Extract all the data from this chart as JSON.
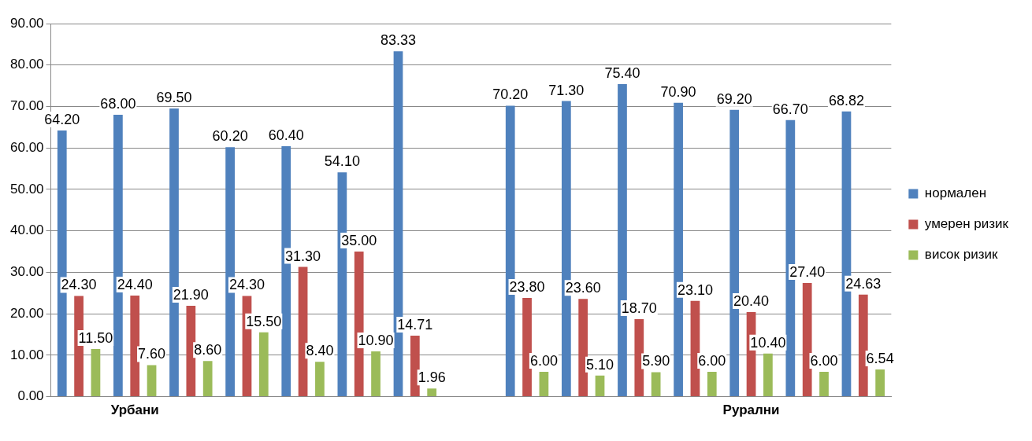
{
  "chart_data": {
    "type": "bar",
    "categories": [
      null,
      "Урбани",
      null,
      null,
      null,
      null,
      null,
      null,
      null,
      null,
      null,
      null,
      "Рурални",
      null,
      null
    ],
    "series": [
      {
        "name": "нормален",
        "color": "#4f81bd",
        "values": [
          64.2,
          68,
          69.5,
          60.2,
          60.4,
          54.1,
          83.33,
          null,
          70.2,
          71.3,
          75.4,
          70.9,
          69.2,
          66.7,
          68.82
        ],
        "value_labels": [
          "64.20",
          "68.00",
          "69.50",
          "60.20",
          "60.40",
          "54.10",
          "83.33",
          null,
          "70.20",
          "71.30",
          "75.40",
          "70.90",
          "69.20",
          "66.70",
          "68.82"
        ]
      },
      {
        "name": "умерен ризик",
        "color": "#c0504d",
        "values": [
          24.3,
          24.4,
          21.9,
          24.3,
          31.3,
          35,
          14.71,
          null,
          23.8,
          23.6,
          18.7,
          23.1,
          20.4,
          27.4,
          24.63
        ],
        "value_labels": [
          "24.30",
          "24.40",
          "21.90",
          "24.30",
          "31.30",
          "35.00",
          "14.71",
          null,
          "23.80",
          "23.60",
          "18.70",
          "23.10",
          "20.40",
          "27.40",
          "24.63"
        ]
      },
      {
        "name": "висок ризик",
        "color": "#9bbb59",
        "values": [
          11.5,
          7.6,
          8.6,
          15.5,
          8.4,
          10.9,
          1.96,
          null,
          6,
          5.1,
          5.9,
          6,
          10.4,
          6,
          6.54
        ],
        "value_labels": [
          "11.50",
          "7.60",
          "8.60",
          "15.50",
          "8.40",
          "10.90",
          "1.96",
          null,
          "6.00",
          "5.10",
          "5.90",
          "6.00",
          "10.40",
          "6.00",
          "6.54"
        ]
      }
    ],
    "ylim": [
      0,
      90
    ],
    "yticks": [
      {
        "value": 0,
        "label": "0.00"
      },
      {
        "value": 10,
        "label": "10.00"
      },
      {
        "value": 20,
        "label": "20.00"
      },
      {
        "value": 30,
        "label": "30.00"
      },
      {
        "value": 40,
        "label": "40.00"
      },
      {
        "value": 50,
        "label": "50.00"
      },
      {
        "value": 60,
        "label": "60.00"
      },
      {
        "value": 70,
        "label": "70.00"
      },
      {
        "value": 80,
        "label": "80.00"
      },
      {
        "value": 90,
        "label": "90.00"
      }
    ],
    "grid": "y",
    "legend": "right"
  }
}
